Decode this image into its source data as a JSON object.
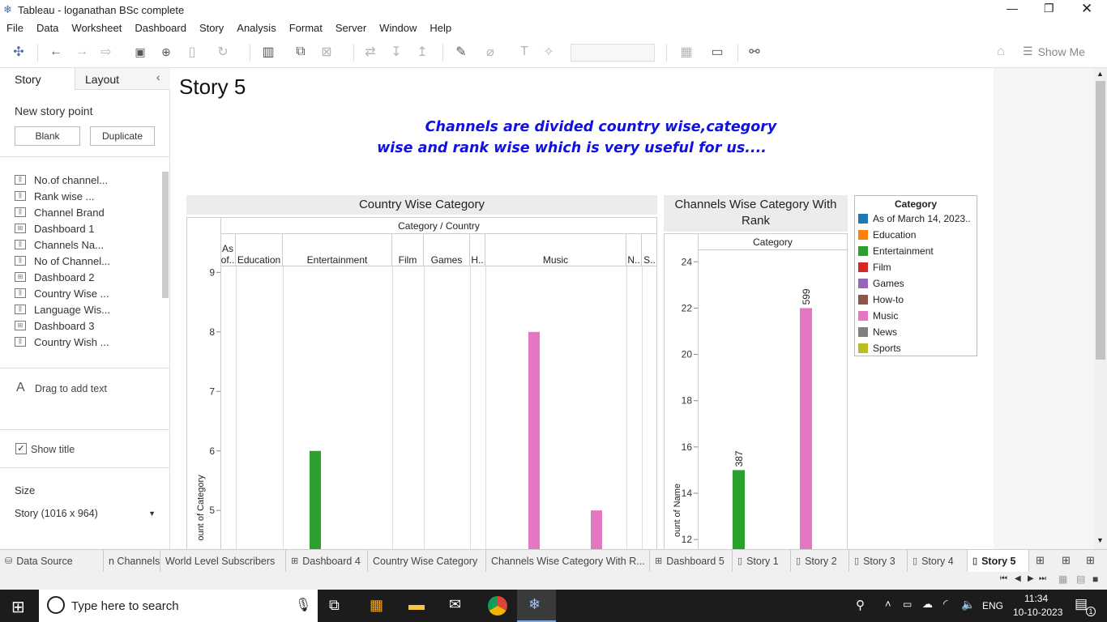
{
  "window": {
    "title": "Tableau - loganathan BSc complete"
  },
  "menu": [
    "File",
    "Data",
    "Worksheet",
    "Dashboard",
    "Story",
    "Analysis",
    "Format",
    "Server",
    "Window",
    "Help"
  ],
  "toolbar": {
    "show_me": "Show Me"
  },
  "left_pane": {
    "tabs": [
      "Story",
      "Layout"
    ],
    "new_story_point": "New story point",
    "blank": "Blank",
    "duplicate": "Duplicate",
    "sheets": [
      {
        "label": "No.of channel...",
        "icon": "sheet-icon"
      },
      {
        "label": "Rank wise ...",
        "icon": "sheet-icon"
      },
      {
        "label": "Channel Brand",
        "icon": "sheet-icon"
      },
      {
        "label": "Dashboard 1",
        "icon": "dashboard-icon"
      },
      {
        "label": "Channels Na...",
        "icon": "sheet-icon"
      },
      {
        "label": "No of Channel...",
        "icon": "sheet-icon"
      },
      {
        "label": "Dashboard 2",
        "icon": "dashboard-icon"
      },
      {
        "label": "Country Wise ...",
        "icon": "sheet-icon"
      },
      {
        "label": "Language Wis...",
        "icon": "sheet-icon"
      },
      {
        "label": "Dashboard 3",
        "icon": "dashboard-icon"
      },
      {
        "label": "Country Wish ...",
        "icon": "sheet-icon"
      }
    ],
    "drag_text": "Drag to add text",
    "show_title": "Show title",
    "size_label": "Size",
    "size_value": "Story (1016 x 964)"
  },
  "story": {
    "title": "Story 5",
    "caption_line1": "Channels are divided country wise,category",
    "caption_line2": "wise and rank wise which is very useful for us...."
  },
  "chart1": {
    "title": "Country Wise Category",
    "header": "Category  /  Country",
    "columns": [
      "As of..",
      "Education",
      "Entertainment",
      "Film",
      "Games",
      "H..",
      "Music",
      "N..",
      "S.."
    ],
    "ylabel": "ount of Category",
    "yticks": [
      "9",
      "8",
      "7",
      "6",
      "5"
    ]
  },
  "chart2": {
    "title": "Channels Wise Category With Rank",
    "header": "Category",
    "ylabel": "ount of Name",
    "yticks": [
      "24",
      "22",
      "20",
      "18",
      "16",
      "14",
      "12"
    ]
  },
  "legend": {
    "title": "Category",
    "items": [
      {
        "label": "As of March 14, 2023..",
        "color": "#1f77b4"
      },
      {
        "label": "Education",
        "color": "#ff7f0e"
      },
      {
        "label": "Entertainment",
        "color": "#2ca02c"
      },
      {
        "label": "Film",
        "color": "#d62728"
      },
      {
        "label": "Games",
        "color": "#9467bd"
      },
      {
        "label": "How-to",
        "color": "#8c564b"
      },
      {
        "label": "Music",
        "color": "#e377c2"
      },
      {
        "label": "News",
        "color": "#7f7f7f"
      },
      {
        "label": "Sports",
        "color": "#bcbd22"
      }
    ]
  },
  "chart_data": [
    {
      "type": "bar",
      "title": "Country Wise Category",
      "categories": [
        "Entertainment",
        "Music",
        "Music"
      ],
      "values": [
        6,
        8,
        5
      ],
      "colors": [
        "#2ca02c",
        "#e377c2",
        "#e377c2"
      ],
      "ylabel": "ount of Category",
      "ylim": [
        4.2,
        9.1
      ]
    },
    {
      "type": "bar",
      "title": "Channels Wise Category With Rank",
      "categories": [
        "Entertainment",
        "Music"
      ],
      "values": [
        15,
        22
      ],
      "labels": [
        "387",
        "599"
      ],
      "colors": [
        "#2ca02c",
        "#e377c2"
      ],
      "ylabel": "ount of Name",
      "ylim": [
        11.2,
        24.5
      ]
    }
  ],
  "tabs": [
    "Data Source",
    "n Channels",
    "World Level Subscribers",
    "Dashboard 4",
    "Country Wise Category",
    "Channels Wise Category With R...",
    "Dashboard 5",
    "Story 1",
    "Story 2",
    "Story 3",
    "Story 4",
    "Story 5"
  ],
  "taskbar": {
    "search_placeholder": "Type here to search",
    "lang": "ENG",
    "time": "11:34",
    "date": "10-10-2023",
    "notif_count": "1"
  }
}
